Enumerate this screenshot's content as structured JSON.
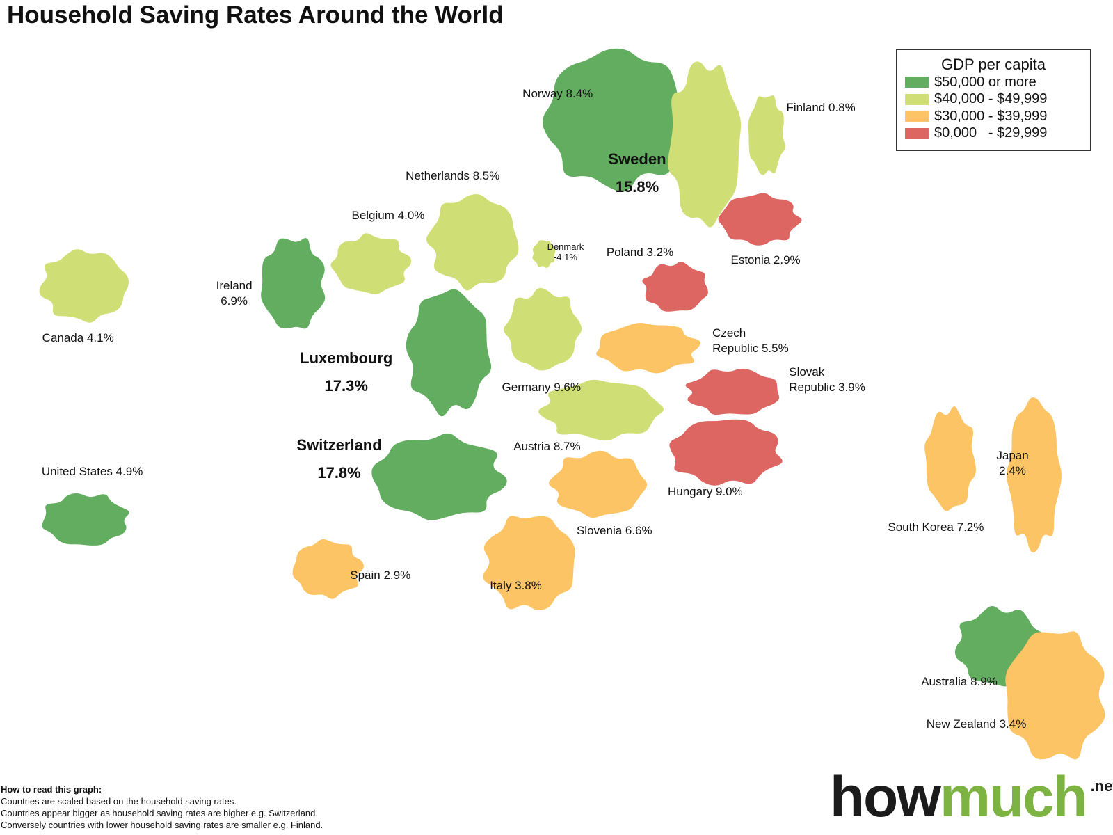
{
  "title": "Household Saving Rates Around the World",
  "legend": {
    "title": "GDP per capita",
    "items": [
      {
        "label": "$50,000 or more",
        "color": "#62ad5f"
      },
      {
        "label": "$40,000 - $49,999",
        "color": "#cfdf75"
      },
      {
        "label": "$30,000 - $39,999",
        "color": "#fdc466"
      },
      {
        "label": "$0,000   - $29,999",
        "color": "#dd6562"
      }
    ]
  },
  "countries": [
    {
      "name": "Norway",
      "rate": "8.4%",
      "color": "#62ad5f"
    },
    {
      "name": "Sweden",
      "rate": "15.8%",
      "color": "#cfdf75"
    },
    {
      "name": "Finland",
      "rate": "0.8%",
      "color": "#cfdf75"
    },
    {
      "name": "Netherlands",
      "rate": "8.5%",
      "color": "#cfdf75"
    },
    {
      "name": "Belgium",
      "rate": "4.0%",
      "color": "#cfdf75"
    },
    {
      "name": "Denmark",
      "rate": "-4.1%",
      "color": "#cfdf75"
    },
    {
      "name": "Poland",
      "rate": "3.2%",
      "color": "#dd6562"
    },
    {
      "name": "Estonia",
      "rate": "2.9%",
      "color": "#dd6562"
    },
    {
      "name": "Canada",
      "rate": "4.1%",
      "color": "#cfdf75"
    },
    {
      "name": "Ireland",
      "rate": "6.9%",
      "color": "#62ad5f"
    },
    {
      "name": "Luxembourg",
      "rate": "17.3%",
      "color": "#62ad5f"
    },
    {
      "name": "Germany",
      "rate": "9.6%",
      "color": "#cfdf75"
    },
    {
      "name": "Czech Republic",
      "rate": "5.5%",
      "color": "#fdc466"
    },
    {
      "name": "Slovak Republic",
      "rate": "3.9%",
      "color": "#dd6562"
    },
    {
      "name": "Switzerland",
      "rate": "17.8%",
      "color": "#62ad5f"
    },
    {
      "name": "Austria",
      "rate": "8.7%",
      "color": "#cfdf75"
    },
    {
      "name": "United States",
      "rate": "4.9%",
      "color": "#62ad5f"
    },
    {
      "name": "Hungary",
      "rate": "9.0%",
      "color": "#dd6562"
    },
    {
      "name": "Slovenia",
      "rate": "6.6%",
      "color": "#fdc466"
    },
    {
      "name": "Spain",
      "rate": "2.9%",
      "color": "#fdc466"
    },
    {
      "name": "Italy",
      "rate": "3.8%",
      "color": "#fdc466"
    },
    {
      "name": "South Korea",
      "rate": "7.2%",
      "color": "#fdc466"
    },
    {
      "name": "Japan",
      "rate": "2.4%",
      "color": "#fdc466"
    },
    {
      "name": "Australia",
      "rate": "8.9%",
      "color": "#62ad5f"
    },
    {
      "name": "New Zealand",
      "rate": "3.4%",
      "color": "#fdc466"
    }
  ],
  "notes": {
    "heading": "How to read this graph:",
    "lines": [
      "Countries are scaled based on the household saving rates.",
      "Countries appear bigger as household saving rates are higher e.g. Switzerland.",
      "Conversely countries with lower household saving rates are smaller e.g. Finland."
    ]
  },
  "logo": {
    "main": "how",
    "accent": "much",
    "suffix": ".net"
  }
}
